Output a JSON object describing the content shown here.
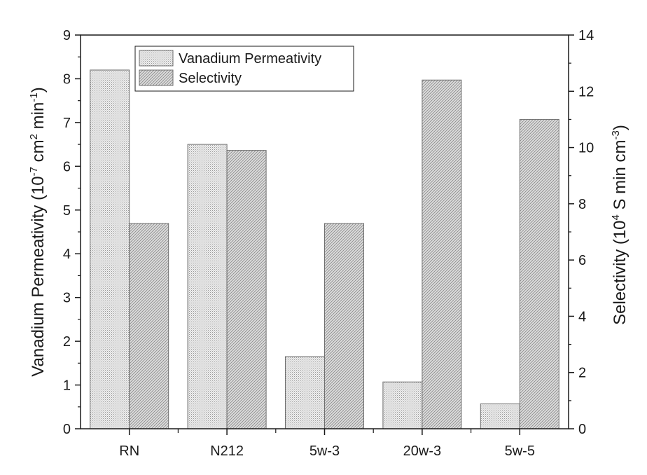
{
  "chart_data": {
    "type": "bar",
    "title": "",
    "categories": [
      "RN",
      "N212",
      "5w-3",
      "20w-3",
      "5w-5"
    ],
    "series": [
      {
        "name": "Vanadium Permeativity",
        "axis": "left",
        "values": [
          8.2,
          6.5,
          1.65,
          1.07,
          0.57
        ],
        "fill": "#e2e2e2",
        "pattern": "dots"
      },
      {
        "name": "Selectivity",
        "axis": "right",
        "values": [
          7.3,
          9.9,
          7.3,
          12.4,
          11.0
        ],
        "fill": "#d0d0d0",
        "pattern": "diagonal"
      }
    ],
    "y_left": {
      "label_main": "Vanadium Permeativity (10",
      "label_sup1": "-7",
      "label_mid": " cm",
      "label_sup2": "2",
      "label_end": " min",
      "label_sup3": "-1",
      "label_close": ")",
      "lim": [
        0,
        9
      ],
      "ticks": [
        "0",
        "1",
        "2",
        "3",
        "4",
        "5",
        "6",
        "7",
        "8",
        "9"
      ]
    },
    "y_right": {
      "label_main": "Selectivity (10",
      "label_sup1": "4",
      "label_mid": " S min cm",
      "label_sup2": "-3",
      "label_close": ")",
      "lim": [
        0,
        14
      ],
      "ticks": [
        "0",
        "2",
        "4",
        "6",
        "8",
        "10",
        "12",
        "14"
      ]
    },
    "xlabel": "",
    "legend_position": "top-left",
    "grid": false
  }
}
